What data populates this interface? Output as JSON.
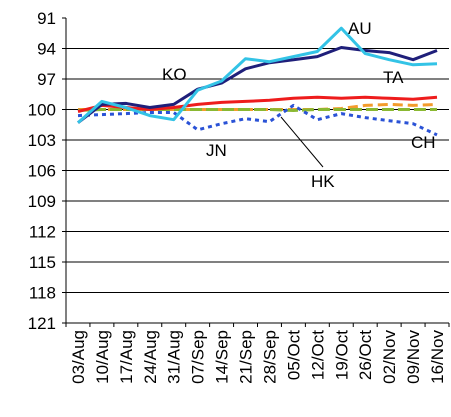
{
  "chart_data": {
    "type": "line",
    "title": "",
    "xlabel": "",
    "ylabel": "",
    "y_axis_reversed": true,
    "ylim": [
      91,
      121
    ],
    "y_ticks": [
      "91",
      "94",
      "97",
      "100",
      "103",
      "106",
      "109",
      "112",
      "115",
      "118",
      "121"
    ],
    "x_ticks": [
      "03/Aug",
      "10/Aug",
      "17/Aug",
      "24/Aug",
      "31/Aug",
      "07/Sep",
      "14/Sep",
      "21/Sep",
      "28/Sep",
      "05/Oct",
      "12/Oct",
      "19/Oct",
      "26/Oct",
      "02/Nov",
      "09/Nov",
      "16/Nov"
    ],
    "grid": "horizontal",
    "legend": "labels on chart",
    "series": [
      {
        "name": "AU",
        "color": "#33c3e6",
        "values": [
          101.3,
          99.2,
          99.8,
          100.6,
          101.0,
          98.1,
          97.2,
          95.0,
          95.3,
          94.8,
          94.3,
          92.0,
          94.5,
          95.1,
          95.6,
          95.5
        ]
      },
      {
        "name": "KO",
        "color": "#1f1f7a",
        "values": [
          101.3,
          99.5,
          99.4,
          99.8,
          99.5,
          98.0,
          97.4,
          96.0,
          95.4,
          95.1,
          94.8,
          93.9,
          94.2,
          94.4,
          95.1,
          94.2
        ]
      },
      {
        "name": "TA",
        "color": "#ee1c1c",
        "values": [
          100.2,
          99.6,
          99.8,
          100.0,
          99.8,
          99.5,
          99.3,
          99.2,
          99.1,
          98.9,
          98.8,
          98.9,
          98.8,
          98.9,
          99.0,
          98.8
        ]
      },
      {
        "name": "HK",
        "color": "#f39c2c",
        "values": [
          100.0,
          100.0,
          100.0,
          100.0,
          100.0,
          100.0,
          100.0,
          100.0,
          100.0,
          100.0,
          100.0,
          99.9,
          99.6,
          99.5,
          99.6,
          99.5
        ]
      },
      {
        "name": "JN",
        "color": "#2a52d6",
        "values": [
          100.6,
          100.5,
          100.4,
          100.3,
          100.3,
          102.0,
          101.4,
          100.9,
          101.2,
          99.6,
          101.0,
          100.4,
          100.8,
          101.1,
          101.4,
          102.5
        ]
      },
      {
        "name": "CH",
        "color": "#8ab832",
        "values": [
          100.1,
          100.0,
          100.0,
          100.0,
          100.0,
          100.0,
          100.0,
          100.0,
          100.0,
          100.1,
          100.0,
          100.0,
          100.0,
          100.0,
          100.0,
          100.0
        ]
      }
    ]
  }
}
